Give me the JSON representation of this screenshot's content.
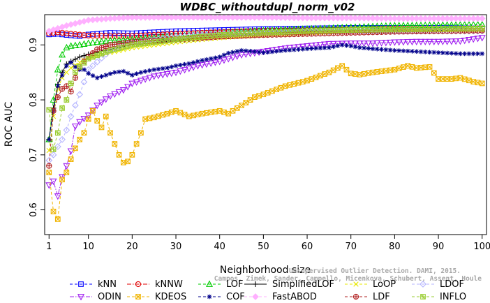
{
  "chart_data": {
    "type": "line",
    "title": "WDBC_withoutdupl_norm_v02",
    "xlabel": "Neighborhood size",
    "ylabel": "ROC AUC",
    "xlim": [
      0,
      101
    ],
    "ylim": [
      0.555,
      0.955
    ],
    "xticks": [
      1,
      10,
      20,
      30,
      40,
      50,
      60,
      70,
      80,
      90,
      100
    ],
    "yticks": [
      0.6,
      0.7,
      0.8,
      0.9
    ],
    "grid": false,
    "legend_position": "bottom",
    "credit": {
      "line1": "Unsupervised Outlier Detection. DAMI, 2015.",
      "line2": "Campos, Zimek, Sander, Campello, Micenkova, Schubert, Assent, Houle"
    },
    "series": [
      {
        "name": "kNN",
        "color": "#0000ff",
        "marker": "square",
        "line": "dash",
        "anchors": [
          [
            1,
            0.919
          ],
          [
            3,
            0.92
          ],
          [
            5,
            0.918
          ],
          [
            8,
            0.916
          ],
          [
            10,
            0.919
          ],
          [
            15,
            0.922
          ],
          [
            20,
            0.921
          ],
          [
            30,
            0.925
          ],
          [
            40,
            0.927
          ],
          [
            50,
            0.929
          ],
          [
            60,
            0.93
          ],
          [
            70,
            0.931
          ],
          [
            80,
            0.931
          ],
          [
            90,
            0.931
          ],
          [
            100,
            0.93
          ]
        ]
      },
      {
        "name": "kNNW",
        "color": "#e00000",
        "marker": "circle",
        "line": "dashdot",
        "anchors": [
          [
            1,
            0.921
          ],
          [
            3,
            0.923
          ],
          [
            5,
            0.921
          ],
          [
            10,
            0.917
          ],
          [
            15,
            0.916
          ],
          [
            20,
            0.916
          ],
          [
            30,
            0.92
          ],
          [
            40,
            0.923
          ],
          [
            50,
            0.926
          ],
          [
            60,
            0.927
          ],
          [
            70,
            0.928
          ],
          [
            80,
            0.929
          ],
          [
            90,
            0.929
          ],
          [
            100,
            0.93
          ]
        ]
      },
      {
        "name": "LOF",
        "color": "#00cc00",
        "marker": "triangle-up",
        "line": "dash",
        "anchors": [
          [
            1,
            0.728
          ],
          [
            2,
            0.8
          ],
          [
            3,
            0.855
          ],
          [
            4,
            0.882
          ],
          [
            5,
            0.895
          ],
          [
            6,
            0.898
          ],
          [
            8,
            0.9
          ],
          [
            10,
            0.903
          ],
          [
            15,
            0.908
          ],
          [
            20,
            0.91
          ],
          [
            30,
            0.916
          ],
          [
            40,
            0.921
          ],
          [
            50,
            0.926
          ],
          [
            60,
            0.929
          ],
          [
            70,
            0.932
          ],
          [
            80,
            0.935
          ],
          [
            90,
            0.936
          ],
          [
            100,
            0.937
          ]
        ]
      },
      {
        "name": "SimplifiedLOF",
        "color": "#000000",
        "marker": "plus",
        "line": "solid",
        "anchors": [
          [
            1,
            0.728
          ],
          [
            2,
            0.785
          ],
          [
            3,
            0.828
          ],
          [
            4,
            0.85
          ],
          [
            5,
            0.865
          ],
          [
            6,
            0.87
          ],
          [
            8,
            0.878
          ],
          [
            10,
            0.883
          ],
          [
            15,
            0.892
          ],
          [
            20,
            0.9
          ],
          [
            30,
            0.908
          ],
          [
            40,
            0.915
          ],
          [
            50,
            0.92
          ],
          [
            60,
            0.923
          ],
          [
            70,
            0.925
          ],
          [
            80,
            0.926
          ],
          [
            90,
            0.926
          ],
          [
            100,
            0.925
          ]
        ]
      },
      {
        "name": "LoOP",
        "color": "#e8e800",
        "marker": "x",
        "line": "dash",
        "anchors": [
          [
            1,
            0.708
          ],
          [
            2,
            0.77
          ],
          [
            3,
            0.82
          ],
          [
            4,
            0.84
          ],
          [
            5,
            0.85
          ],
          [
            6,
            0.858
          ],
          [
            8,
            0.868
          ],
          [
            10,
            0.876
          ],
          [
            15,
            0.886
          ],
          [
            20,
            0.895
          ],
          [
            30,
            0.905
          ],
          [
            40,
            0.913
          ],
          [
            50,
            0.918
          ],
          [
            60,
            0.921
          ],
          [
            70,
            0.924
          ],
          [
            80,
            0.925
          ],
          [
            90,
            0.926
          ],
          [
            100,
            0.926
          ]
        ]
      },
      {
        "name": "LDOF",
        "color": "#b4b4ff",
        "marker": "diamond",
        "line": "dash",
        "anchors": [
          [
            1,
            0.69
          ],
          [
            2,
            0.7
          ],
          [
            3,
            0.715
          ],
          [
            4,
            0.728
          ],
          [
            5,
            0.745
          ],
          [
            6,
            0.77
          ],
          [
            8,
            0.81
          ],
          [
            10,
            0.855
          ],
          [
            15,
            0.89
          ],
          [
            20,
            0.905
          ],
          [
            30,
            0.915
          ],
          [
            40,
            0.92
          ],
          [
            50,
            0.922
          ],
          [
            60,
            0.924
          ],
          [
            70,
            0.925
          ],
          [
            80,
            0.925
          ],
          [
            90,
            0.925
          ],
          [
            100,
            0.925
          ]
        ]
      },
      {
        "name": "ODIN",
        "color": "#a020f0",
        "marker": "triangle-down",
        "line": "dashdot",
        "anchors": [
          [
            1,
            0.645
          ],
          [
            2,
            0.652
          ],
          [
            3,
            0.625
          ],
          [
            4,
            0.66
          ],
          [
            5,
            0.68
          ],
          [
            6,
            0.707
          ],
          [
            7,
            0.752
          ],
          [
            8,
            0.76
          ],
          [
            10,
            0.772
          ],
          [
            12,
            0.79
          ],
          [
            15,
            0.807
          ],
          [
            18,
            0.818
          ],
          [
            20,
            0.83
          ],
          [
            25,
            0.843
          ],
          [
            30,
            0.85
          ],
          [
            35,
            0.862
          ],
          [
            40,
            0.87
          ],
          [
            45,
            0.882
          ],
          [
            50,
            0.888
          ],
          [
            55,
            0.894
          ],
          [
            60,
            0.898
          ],
          [
            65,
            0.902
          ],
          [
            70,
            0.903
          ],
          [
            75,
            0.903
          ],
          [
            80,
            0.905
          ],
          [
            85,
            0.906
          ],
          [
            90,
            0.906
          ],
          [
            95,
            0.907
          ],
          [
            100,
            0.913
          ]
        ]
      },
      {
        "name": "KDEOS",
        "color": "#f0b400",
        "marker": "square-x",
        "line": "dash",
        "anchors": [
          [
            1,
            0.668
          ],
          [
            2,
            0.597
          ],
          [
            3,
            0.583
          ],
          [
            4,
            0.655
          ],
          [
            5,
            0.668
          ],
          [
            6,
            0.692
          ],
          [
            7,
            0.712
          ],
          [
            8,
            0.728
          ],
          [
            9,
            0.74
          ],
          [
            10,
            0.765
          ],
          [
            11,
            0.78
          ],
          [
            12,
            0.762
          ],
          [
            13,
            0.75
          ],
          [
            14,
            0.77
          ],
          [
            15,
            0.74
          ],
          [
            16,
            0.72
          ],
          [
            17,
            0.7
          ],
          [
            18,
            0.686
          ],
          [
            19,
            0.688
          ],
          [
            20,
            0.7
          ],
          [
            21,
            0.72
          ],
          [
            22,
            0.74
          ],
          [
            23,
            0.765
          ],
          [
            25,
            0.768
          ],
          [
            28,
            0.775
          ],
          [
            30,
            0.78
          ],
          [
            33,
            0.77
          ],
          [
            36,
            0.775
          ],
          [
            40,
            0.78
          ],
          [
            42,
            0.775
          ],
          [
            45,
            0.79
          ],
          [
            48,
            0.805
          ],
          [
            50,
            0.81
          ],
          [
            55,
            0.825
          ],
          [
            60,
            0.835
          ],
          [
            65,
            0.85
          ],
          [
            68,
            0.862
          ],
          [
            70,
            0.848
          ],
          [
            72,
            0.846
          ],
          [
            75,
            0.85
          ],
          [
            80,
            0.855
          ],
          [
            83,
            0.862
          ],
          [
            85,
            0.858
          ],
          [
            88,
            0.86
          ],
          [
            90,
            0.838
          ],
          [
            93,
            0.838
          ],
          [
            95,
            0.84
          ],
          [
            98,
            0.833
          ],
          [
            100,
            0.83
          ]
        ]
      },
      {
        "name": "COF",
        "color": "#00008b",
        "marker": "asterisk",
        "line": "dash",
        "anchors": [
          [
            1,
            0.728
          ],
          [
            2,
            0.78
          ],
          [
            3,
            0.825
          ],
          [
            4,
            0.845
          ],
          [
            5,
            0.862
          ],
          [
            6,
            0.868
          ],
          [
            7,
            0.86
          ],
          [
            8,
            0.855
          ],
          [
            9,
            0.855
          ],
          [
            10,
            0.848
          ],
          [
            12,
            0.84
          ],
          [
            14,
            0.845
          ],
          [
            16,
            0.85
          ],
          [
            18,
            0.852
          ],
          [
            20,
            0.845
          ],
          [
            22,
            0.85
          ],
          [
            25,
            0.855
          ],
          [
            28,
            0.858
          ],
          [
            30,
            0.862
          ],
          [
            33,
            0.866
          ],
          [
            36,
            0.872
          ],
          [
            40,
            0.878
          ],
          [
            42,
            0.885
          ],
          [
            45,
            0.89
          ],
          [
            48,
            0.888
          ],
          [
            50,
            0.886
          ],
          [
            55,
            0.89
          ],
          [
            60,
            0.893
          ],
          [
            65,
            0.895
          ],
          [
            68,
            0.9
          ],
          [
            70,
            0.898
          ],
          [
            72,
            0.895
          ],
          [
            75,
            0.893
          ],
          [
            80,
            0.89
          ],
          [
            85,
            0.888
          ],
          [
            90,
            0.886
          ],
          [
            95,
            0.884
          ],
          [
            100,
            0.884
          ]
        ]
      },
      {
        "name": "FastABOD",
        "color": "#ffb0ff",
        "marker": "diamond-filled",
        "line": "dash",
        "anchors": [
          [
            1,
            0.925
          ],
          [
            5,
            0.935
          ],
          [
            10,
            0.945
          ],
          [
            15,
            0.948
          ],
          [
            20,
            0.95
          ],
          [
            30,
            0.95
          ],
          [
            40,
            0.95
          ],
          [
            50,
            0.95
          ],
          [
            60,
            0.949
          ],
          [
            70,
            0.949
          ],
          [
            80,
            0.948
          ],
          [
            90,
            0.948
          ],
          [
            100,
            0.948
          ]
        ]
      },
      {
        "name": "LDF",
        "color": "#b22222",
        "marker": "circle-plus",
        "line": "dash",
        "anchors": [
          [
            1,
            0.68
          ],
          [
            2,
            0.78
          ],
          [
            3,
            0.805
          ],
          [
            4,
            0.82
          ],
          [
            5,
            0.825
          ],
          [
            6,
            0.815
          ],
          [
            7,
            0.84
          ],
          [
            8,
            0.86
          ],
          [
            9,
            0.87
          ],
          [
            10,
            0.878
          ],
          [
            12,
            0.892
          ],
          [
            15,
            0.9
          ],
          [
            20,
            0.905
          ],
          [
            30,
            0.91
          ],
          [
            40,
            0.915
          ],
          [
            50,
            0.918
          ],
          [
            60,
            0.92
          ],
          [
            70,
            0.922
          ],
          [
            80,
            0.924
          ],
          [
            90,
            0.925
          ],
          [
            100,
            0.926
          ]
        ]
      },
      {
        "name": "INFLO",
        "color": "#9acd32",
        "marker": "square-asterisk",
        "line": "dash",
        "anchors": [
          [
            1,
            0.782
          ],
          [
            2,
            0.71
          ],
          [
            3,
            0.74
          ],
          [
            4,
            0.785
          ],
          [
            5,
            0.8
          ],
          [
            6,
            0.83
          ],
          [
            7,
            0.85
          ],
          [
            8,
            0.86
          ],
          [
            10,
            0.875
          ],
          [
            15,
            0.89
          ],
          [
            20,
            0.9
          ],
          [
            30,
            0.91
          ],
          [
            40,
            0.918
          ],
          [
            50,
            0.922
          ],
          [
            60,
            0.925
          ],
          [
            70,
            0.927
          ],
          [
            80,
            0.928
          ],
          [
            90,
            0.929
          ],
          [
            100,
            0.93
          ]
        ]
      }
    ]
  }
}
